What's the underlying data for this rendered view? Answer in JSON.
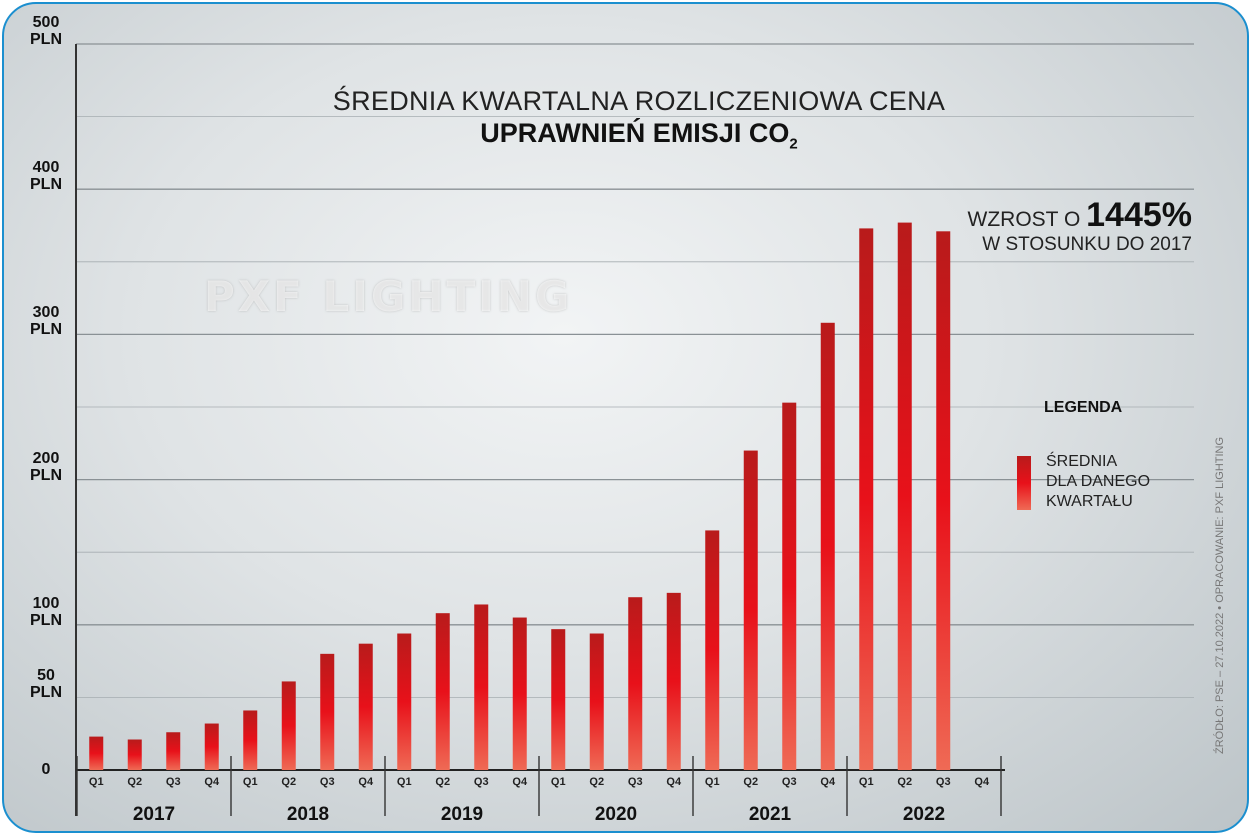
{
  "title_line1": "ŚREDNIA KWARTALNA ROZLICZENIOWA CENA",
  "title_line2": "UPRAWNIEŃ EMISJI CO",
  "title_subscript": "2",
  "y_ticks": [
    {
      "value": 0,
      "line1": "0",
      "line2": ""
    },
    {
      "value": 50,
      "line1": "50",
      "line2": "PLN"
    },
    {
      "value": 100,
      "line1": "100",
      "line2": "PLN"
    },
    {
      "value": 200,
      "line1": "200",
      "line2": "PLN"
    },
    {
      "value": 300,
      "line1": "300",
      "line2": "PLN"
    },
    {
      "value": 400,
      "line1": "400",
      "line2": "PLN"
    },
    {
      "value": 500,
      "line1": "500",
      "line2": "PLN"
    }
  ],
  "callout": {
    "prefix": "WZROST O",
    "value": "1445%",
    "line2": "W STOSUNKU DO 2017"
  },
  "legend": {
    "title": "LEGENDA",
    "line1": "ŚREDNIA",
    "line2": "DLA DANEGO",
    "line3": "KWARTAŁU"
  },
  "watermark": "PXF LIGHTING",
  "source": "ŹRÓDŁO: PSE – 27.10.2022  •  OPRACOWANIE: PXF LIGHTING",
  "colors": {
    "bar_top": "#b81b1b",
    "bar_mid": "#e8111a",
    "bar_bottom": "#ef6a55",
    "frame": "#1b8fcf"
  },
  "chart_data": {
    "type": "bar",
    "title": "ŚREDNIA KWARTALNA ROZLICZENIOWA CENA UPRAWNIEŃ EMISJI CO2",
    "ylim": [
      0,
      500
    ],
    "grid": true,
    "legend_position": "right",
    "years": [
      "2017",
      "2018",
      "2019",
      "2020",
      "2021",
      "2022"
    ],
    "quarters": [
      "Q1",
      "Q2",
      "Q3",
      "Q4"
    ],
    "categories": [
      "2017 Q1",
      "2017 Q2",
      "2017 Q3",
      "2017 Q4",
      "2018 Q1",
      "2018 Q2",
      "2018 Q3",
      "2018 Q4",
      "2019 Q1",
      "2019 Q2",
      "2019 Q3",
      "2019 Q4",
      "2020 Q1",
      "2020 Q2",
      "2020 Q3",
      "2020 Q4",
      "2021 Q1",
      "2021 Q2",
      "2021 Q3",
      "2021 Q4",
      "2022 Q1",
      "2022 Q2",
      "2022 Q3",
      "2022 Q4"
    ],
    "series": [
      {
        "name": "ŚREDNIA DLA DANEGO KWARTAŁU",
        "values": [
          23,
          21,
          26,
          32,
          41,
          61,
          80,
          87,
          94,
          108,
          114,
          105,
          97,
          94,
          119,
          122,
          165,
          220,
          253,
          308,
          373,
          377,
          371,
          null
        ]
      }
    ]
  }
}
